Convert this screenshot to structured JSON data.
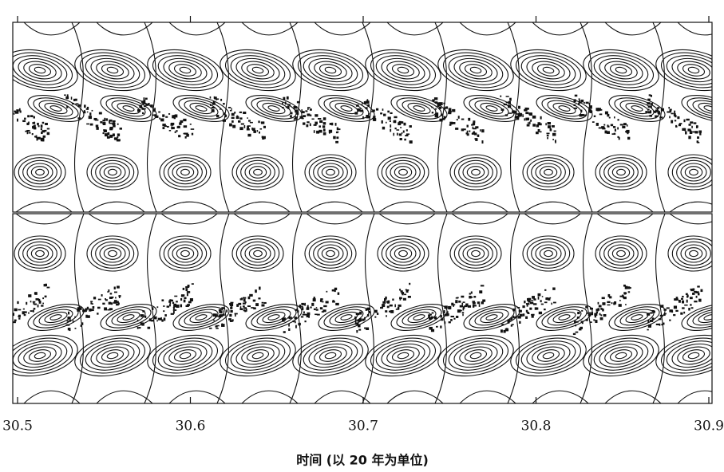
{
  "chart_data": {
    "type": "contour",
    "xlabel": "时间 (以 20 年为单位)",
    "xlim": [
      30.5,
      30.9
    ],
    "xticks": [
      30.5,
      30.6,
      30.7,
      30.8,
      30.9
    ],
    "color": "#111111"
  }
}
